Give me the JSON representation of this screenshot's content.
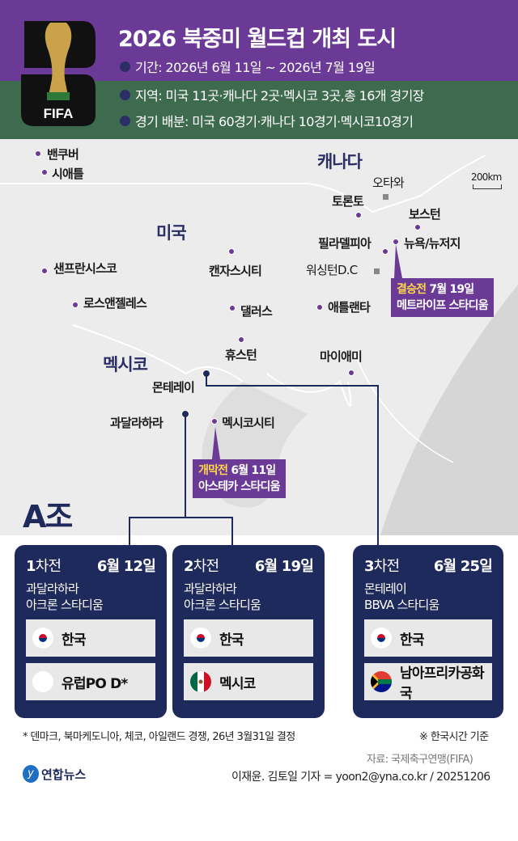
{
  "header": {
    "title": "2026 북중미 월드컵 개최 도시",
    "logo_text": "FIFA",
    "bullets": [
      "기간: 2026년 6월 11일 ~ 2026년 7월 19일",
      "지역: 미국 11곳·캐나다 2곳·멕시코 3곳,총 16개 경기장",
      "경기 배분: 미국 60경기·캐나다 10경기·멕시코10경기"
    ]
  },
  "colors": {
    "purple": "#6b3a97",
    "green": "#3e6b4e",
    "navy": "#1f2a5c",
    "highlight": "#ffd84a"
  },
  "map": {
    "scale": "200km",
    "countries": {
      "canada": "캐나다",
      "usa": "미국",
      "mexico": "멕시코"
    },
    "cities": [
      "밴쿠버",
      "시애틀",
      "샌프란시스코",
      "로스앤젤레스",
      "캔자스시티",
      "댈러스",
      "휴스턴",
      "애틀랜타",
      "마이애미",
      "토론토",
      "보스턴",
      "뉴욕/뉴저지",
      "필라델피아",
      "몬테레이",
      "과달라하라",
      "멕시코시티"
    ],
    "capitals": [
      "오타와",
      "워싱턴D.C"
    ],
    "final": {
      "label": "결승전",
      "date": "7월 19일",
      "venue": "메트라이프 스타디움"
    },
    "opening": {
      "label": "개막전",
      "date": "6월 11일",
      "venue": "아스테카 스타디움"
    }
  },
  "group": "A조",
  "matches": [
    {
      "round": "1",
      "round_suffix": "차전",
      "date": "6월 12일",
      "city": "과달라하라",
      "stadium": "아크론 스타디움",
      "teams": [
        "한국",
        "유럽PO D*"
      ]
    },
    {
      "round": "2",
      "round_suffix": "차전",
      "date": "6월 19일",
      "city": "과달라하라",
      "stadium": "아크론 스타디움",
      "teams": [
        "한국",
        "멕시코"
      ]
    },
    {
      "round": "3",
      "round_suffix": "차전",
      "date": "6월 25일",
      "city": "몬테레이",
      "stadium": "BBVA 스타디움",
      "teams": [
        "한국",
        "남아프리카공화국"
      ]
    }
  ],
  "footer": {
    "note": "* 덴마크, 북마케도니아, 체코, 아일랜드 경쟁, 26년 3월31일 결정",
    "time_note": "※ 한국시간 기준",
    "source": "자료: 국제축구연맹(FIFA)",
    "agency": "연합뉴스",
    "credit": "이재윤. 김토일 기자 = yoon2@yna.co.kr / 20251206"
  }
}
